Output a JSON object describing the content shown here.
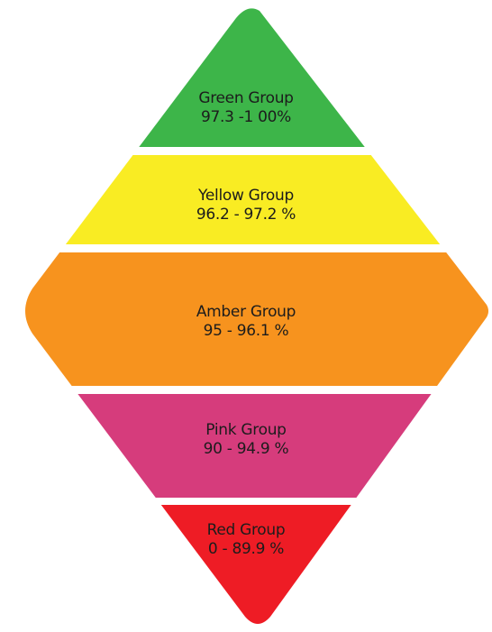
{
  "diagram": {
    "bands": [
      {
        "name": "Green Group",
        "range": "97.3 -1 00%",
        "color": "#3db549"
      },
      {
        "name": "Yellow Group",
        "range": "96.2 - 97.2 %",
        "color": "#f9ec23"
      },
      {
        "name": "Amber Group",
        "range": "95 - 96.1 %",
        "color": "#f7931e"
      },
      {
        "name": "Pink Group",
        "range": "90 - 94.9 %",
        "color": "#d63c7c"
      },
      {
        "name": "Red Group",
        "range": "0 - 89.9 %",
        "color": "#ee1c25"
      }
    ]
  }
}
